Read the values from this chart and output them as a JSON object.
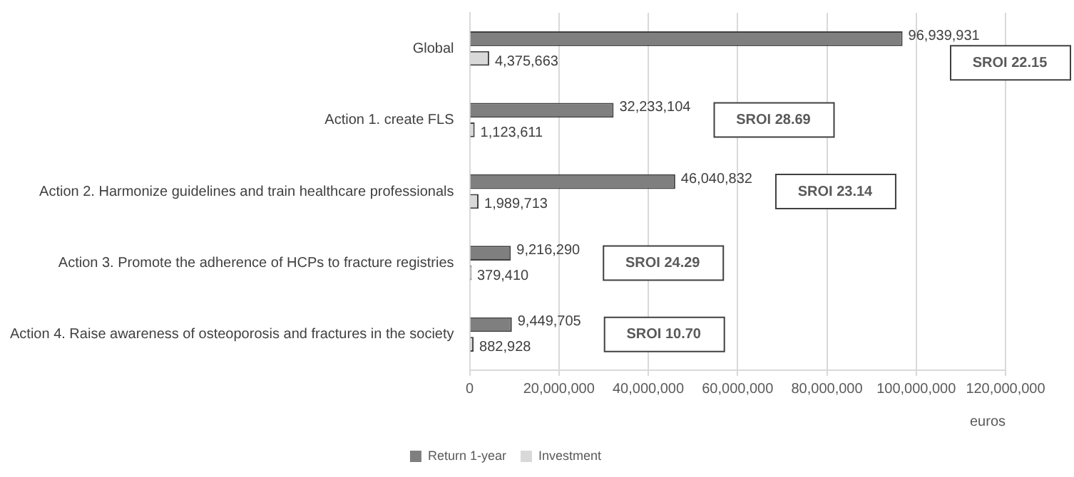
{
  "chart_data": {
    "type": "bar",
    "orientation": "horizontal",
    "categories": [
      "Global",
      "Action 1. create FLS",
      "Action 2. Harmonize guidelines and train healthcare professionals",
      "Action 3. Promote the adherence of HCPs to fracture registries",
      "Action 4. Raise awareness of osteoporosis and fractures in the society"
    ],
    "series": [
      {
        "name": "Return 1-year",
        "color": "#7f7f7f",
        "values": [
          96939931,
          32233104,
          46040832,
          9216290,
          9449705
        ],
        "value_labels": [
          "96,939,931",
          "32,233,104",
          "46,040,832",
          "9,216,290",
          "9,449,705"
        ]
      },
      {
        "name": "Investment",
        "color": "#d9d9d9",
        "values": [
          4375663,
          1123611,
          1989713,
          379410,
          882928
        ],
        "value_labels": [
          "4,375,663",
          "1,123,611",
          "1,989,713",
          "379,410",
          "882,928"
        ]
      }
    ],
    "xlim": [
      0,
      120000000
    ],
    "xticks": [
      0,
      {
        "value": 20000000,
        "label": "20,000,000"
      },
      {
        "value": 40000000,
        "label": "40,000,000"
      },
      {
        "value": 60000000,
        "label": "60,000,000"
      },
      {
        "value": 80000000,
        "label": "80,000,000"
      },
      {
        "value": 100000000,
        "label": "100,000,000"
      },
      {
        "value": 120000000,
        "label": "120,000,000"
      }
    ],
    "xlabel": "euros",
    "grid": "x",
    "legend": "bottom",
    "annotations": [
      "SROI 22.15",
      "SROI 28.69",
      "SROI 23.14",
      "SROI 24.29",
      "SROI 10.70"
    ]
  }
}
